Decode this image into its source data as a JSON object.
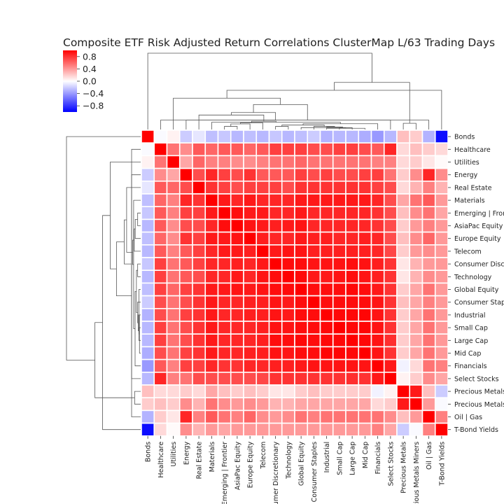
{
  "chart_data": {
    "type": "heatmap",
    "title": "Composite ETF Risk Adjusted Return Correlations ClusterMap L/63 Trading Days",
    "labels": [
      "Bonds",
      "Healthcare",
      "Utilities",
      "Energy",
      "Real Estate",
      "Materials",
      "Emerging | Frontier",
      "AsiaPac Equity",
      "Europe Equity",
      "Telecom",
      "Consumer Discretionary",
      "Technology",
      "Global Equity",
      "Consumer Staples",
      "Industrial",
      "Small Cap",
      "Large Cap",
      "Mid Cap",
      "Financials",
      "Select Stocks",
      "Precious Metals",
      "Precious Metals Miners",
      "Oil | Gas",
      "T-Bond Yields"
    ],
    "values": [
      [
        1.0,
        -0.02,
        0.05,
        -0.2,
        -0.1,
        -0.25,
        -0.22,
        -0.28,
        -0.25,
        -0.28,
        -0.22,
        -0.28,
        -0.25,
        -0.2,
        -0.3,
        -0.28,
        -0.28,
        -0.32,
        -0.4,
        -0.28,
        0.25,
        0.2,
        -0.3,
        -0.95
      ],
      [
        -0.02,
        1.0,
        0.55,
        0.45,
        0.65,
        0.6,
        0.65,
        0.65,
        0.6,
        0.65,
        0.75,
        0.75,
        0.75,
        0.7,
        0.7,
        0.75,
        0.75,
        0.7,
        0.65,
        0.85,
        0.15,
        0.25,
        0.2,
        0.15
      ],
      [
        0.05,
        0.55,
        1.0,
        0.35,
        0.6,
        0.5,
        0.5,
        0.45,
        0.45,
        0.5,
        0.55,
        0.55,
        0.6,
        0.55,
        0.55,
        0.55,
        0.55,
        0.55,
        0.5,
        0.5,
        0.15,
        0.2,
        0.1,
        0.02
      ],
      [
        -0.2,
        0.45,
        0.35,
        1.0,
        0.7,
        0.85,
        0.75,
        0.7,
        0.8,
        0.65,
        0.65,
        0.65,
        0.75,
        0.7,
        0.75,
        0.7,
        0.7,
        0.75,
        0.75,
        0.55,
        0.2,
        0.45,
        0.85,
        0.45
      ],
      [
        -0.1,
        0.65,
        0.6,
        0.7,
        1.0,
        0.8,
        0.75,
        0.7,
        0.75,
        0.75,
        0.75,
        0.7,
        0.8,
        0.8,
        0.8,
        0.8,
        0.8,
        0.8,
        0.75,
        0.7,
        0.15,
        0.3,
        0.5,
        0.3
      ],
      [
        -0.25,
        0.6,
        0.5,
        0.85,
        0.8,
        1.0,
        0.9,
        0.85,
        0.9,
        0.85,
        0.85,
        0.85,
        0.9,
        0.9,
        0.9,
        0.9,
        0.9,
        0.9,
        0.85,
        0.7,
        0.35,
        0.55,
        0.65,
        0.4
      ],
      [
        -0.22,
        0.65,
        0.5,
        0.75,
        0.75,
        0.9,
        1.0,
        0.95,
        0.9,
        0.9,
        0.85,
        0.85,
        0.9,
        0.85,
        0.85,
        0.85,
        0.85,
        0.85,
        0.8,
        0.7,
        0.25,
        0.45,
        0.55,
        0.35
      ],
      [
        -0.28,
        0.65,
        0.45,
        0.7,
        0.7,
        0.85,
        0.95,
        1.0,
        0.92,
        0.9,
        0.88,
        0.9,
        0.92,
        0.85,
        0.85,
        0.85,
        0.85,
        0.85,
        0.8,
        0.7,
        0.2,
        0.4,
        0.5,
        0.4
      ],
      [
        -0.25,
        0.6,
        0.45,
        0.8,
        0.75,
        0.9,
        0.9,
        0.92,
        1.0,
        0.88,
        0.85,
        0.85,
        0.9,
        0.88,
        0.88,
        0.85,
        0.85,
        0.88,
        0.85,
        0.7,
        0.25,
        0.45,
        0.6,
        0.4
      ],
      [
        -0.28,
        0.65,
        0.5,
        0.65,
        0.75,
        0.85,
        0.9,
        0.9,
        0.88,
        1.0,
        0.9,
        0.92,
        0.92,
        0.88,
        0.88,
        0.88,
        0.88,
        0.88,
        0.85,
        0.72,
        0.2,
        0.4,
        0.45,
        0.4
      ],
      [
        -0.22,
        0.75,
        0.55,
        0.65,
        0.75,
        0.85,
        0.85,
        0.88,
        0.85,
        0.9,
        1.0,
        0.95,
        0.95,
        0.92,
        0.92,
        0.93,
        0.95,
        0.93,
        0.88,
        0.8,
        0.1,
        0.3,
        0.4,
        0.4
      ],
      [
        -0.28,
        0.75,
        0.55,
        0.65,
        0.7,
        0.85,
        0.85,
        0.9,
        0.85,
        0.92,
        0.95,
        1.0,
        0.96,
        0.9,
        0.9,
        0.92,
        0.95,
        0.92,
        0.88,
        0.8,
        0.1,
        0.3,
        0.45,
        0.4
      ],
      [
        -0.25,
        0.75,
        0.6,
        0.75,
        0.8,
        0.9,
        0.9,
        0.92,
        0.9,
        0.92,
        0.95,
        0.96,
        1.0,
        0.95,
        0.95,
        0.95,
        0.97,
        0.95,
        0.9,
        0.8,
        0.2,
        0.35,
        0.55,
        0.4
      ],
      [
        -0.2,
        0.7,
        0.55,
        0.7,
        0.8,
        0.9,
        0.85,
        0.85,
        0.88,
        0.88,
        0.92,
        0.9,
        0.95,
        1.0,
        0.95,
        0.95,
        0.95,
        0.95,
        0.92,
        0.8,
        0.25,
        0.35,
        0.5,
        0.4
      ],
      [
        -0.3,
        0.7,
        0.55,
        0.75,
        0.8,
        0.9,
        0.85,
        0.85,
        0.88,
        0.88,
        0.92,
        0.9,
        0.95,
        0.95,
        1.0,
        0.97,
        0.97,
        0.98,
        0.92,
        0.8,
        0.2,
        0.35,
        0.55,
        0.4
      ],
      [
        -0.28,
        0.75,
        0.55,
        0.7,
        0.8,
        0.9,
        0.85,
        0.85,
        0.85,
        0.88,
        0.93,
        0.92,
        0.95,
        0.95,
        0.97,
        1.0,
        0.97,
        0.98,
        0.92,
        0.8,
        0.2,
        0.35,
        0.55,
        0.4
      ],
      [
        -0.28,
        0.75,
        0.55,
        0.7,
        0.8,
        0.9,
        0.85,
        0.85,
        0.85,
        0.88,
        0.95,
        0.95,
        0.97,
        0.95,
        0.97,
        0.97,
        1.0,
        0.97,
        0.92,
        0.82,
        0.2,
        0.35,
        0.55,
        0.4
      ],
      [
        -0.32,
        0.7,
        0.55,
        0.75,
        0.8,
        0.9,
        0.85,
        0.85,
        0.88,
        0.88,
        0.93,
        0.92,
        0.95,
        0.95,
        0.98,
        0.98,
        0.97,
        1.0,
        0.92,
        0.8,
        0.2,
        0.35,
        0.55,
        0.4
      ],
      [
        -0.4,
        0.65,
        0.5,
        0.75,
        0.75,
        0.85,
        0.8,
        0.8,
        0.85,
        0.85,
        0.88,
        0.88,
        0.9,
        0.92,
        0.92,
        0.92,
        0.92,
        0.92,
        1.0,
        0.9,
        -0.05,
        0.15,
        0.55,
        0.5
      ],
      [
        -0.28,
        0.85,
        0.5,
        0.55,
        0.7,
        0.7,
        0.7,
        0.7,
        0.7,
        0.72,
        0.8,
        0.8,
        0.8,
        0.8,
        0.8,
        0.8,
        0.82,
        0.8,
        0.9,
        1.0,
        0.05,
        0.2,
        0.45,
        0.35
      ],
      [
        0.25,
        0.15,
        0.15,
        0.2,
        0.15,
        0.35,
        0.25,
        0.2,
        0.25,
        0.2,
        0.1,
        0.1,
        0.2,
        0.25,
        0.2,
        0.2,
        0.2,
        0.2,
        -0.05,
        0.05,
        1.0,
        0.9,
        0.25,
        -0.2
      ],
      [
        0.2,
        0.25,
        0.2,
        0.45,
        0.3,
        0.55,
        0.45,
        0.4,
        0.45,
        0.4,
        0.3,
        0.3,
        0.35,
        0.35,
        0.35,
        0.35,
        0.35,
        0.35,
        0.15,
        0.2,
        0.9,
        1.0,
        0.4,
        -0.02
      ],
      [
        -0.3,
        0.2,
        0.1,
        0.85,
        0.5,
        0.65,
        0.55,
        0.5,
        0.6,
        0.45,
        0.4,
        0.45,
        0.55,
        0.5,
        0.55,
        0.55,
        0.55,
        0.55,
        0.55,
        0.45,
        0.25,
        0.4,
        1.0,
        0.5
      ],
      [
        -0.95,
        0.15,
        0.02,
        0.45,
        0.3,
        0.4,
        0.35,
        0.4,
        0.4,
        0.4,
        0.4,
        0.4,
        0.4,
        0.4,
        0.4,
        0.4,
        0.4,
        0.4,
        0.5,
        0.35,
        -0.2,
        -0.02,
        0.5,
        1.0
      ]
    ],
    "colorbar": {
      "range": [
        -1,
        1
      ],
      "ticks": [
        "0.8",
        "0.4",
        "0.0",
        "−0.4",
        "−0.8"
      ],
      "tick_values": [
        0.8,
        0.4,
        0.0,
        -0.4,
        -0.8
      ]
    },
    "colors": {
      "negative": "#0000ff",
      "zero": "#ffffff",
      "positive": "#ff0000",
      "grid": "#ffffff",
      "dendrogram": "#555555"
    }
  }
}
